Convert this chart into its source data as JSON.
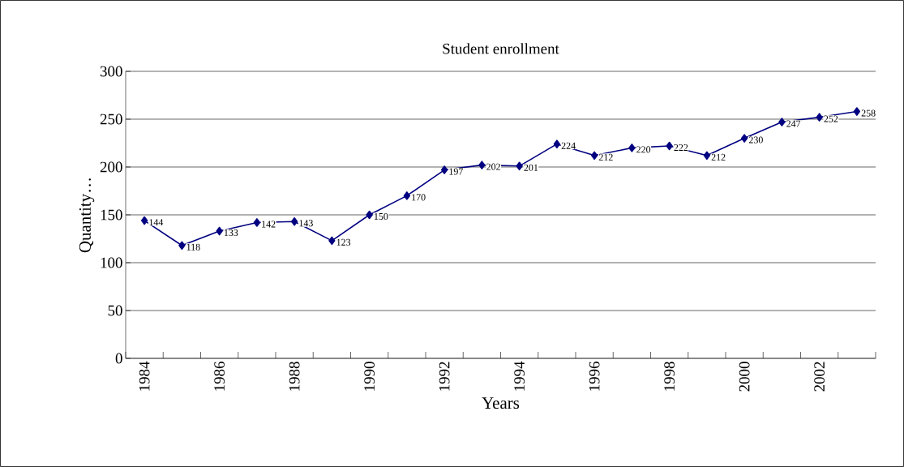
{
  "chart_data": {
    "type": "line",
    "title": "Student enrollment",
    "xlabel": "Years",
    "ylabel": "Quantity…",
    "categories": [
      "1984",
      null,
      "1986",
      null,
      "1988",
      null,
      "1990",
      null,
      "1992",
      null,
      "1994",
      null,
      "1996",
      null,
      "1998",
      null,
      "2000",
      null,
      "2002",
      null
    ],
    "series": [
      {
        "color": "#000080",
        "values": [
          144,
          118,
          133,
          142,
          143,
          123,
          150,
          170,
          197,
          202,
          201,
          224,
          212,
          220,
          222,
          212,
          230,
          247,
          252,
          258
        ]
      }
    ],
    "ylim": [
      0,
      300
    ],
    "yticks": [
      0,
      50,
      100,
      150,
      200,
      250,
      300
    ],
    "grid": "y",
    "marker": "diamond",
    "line_style": "solid",
    "data_labels": true
  }
}
